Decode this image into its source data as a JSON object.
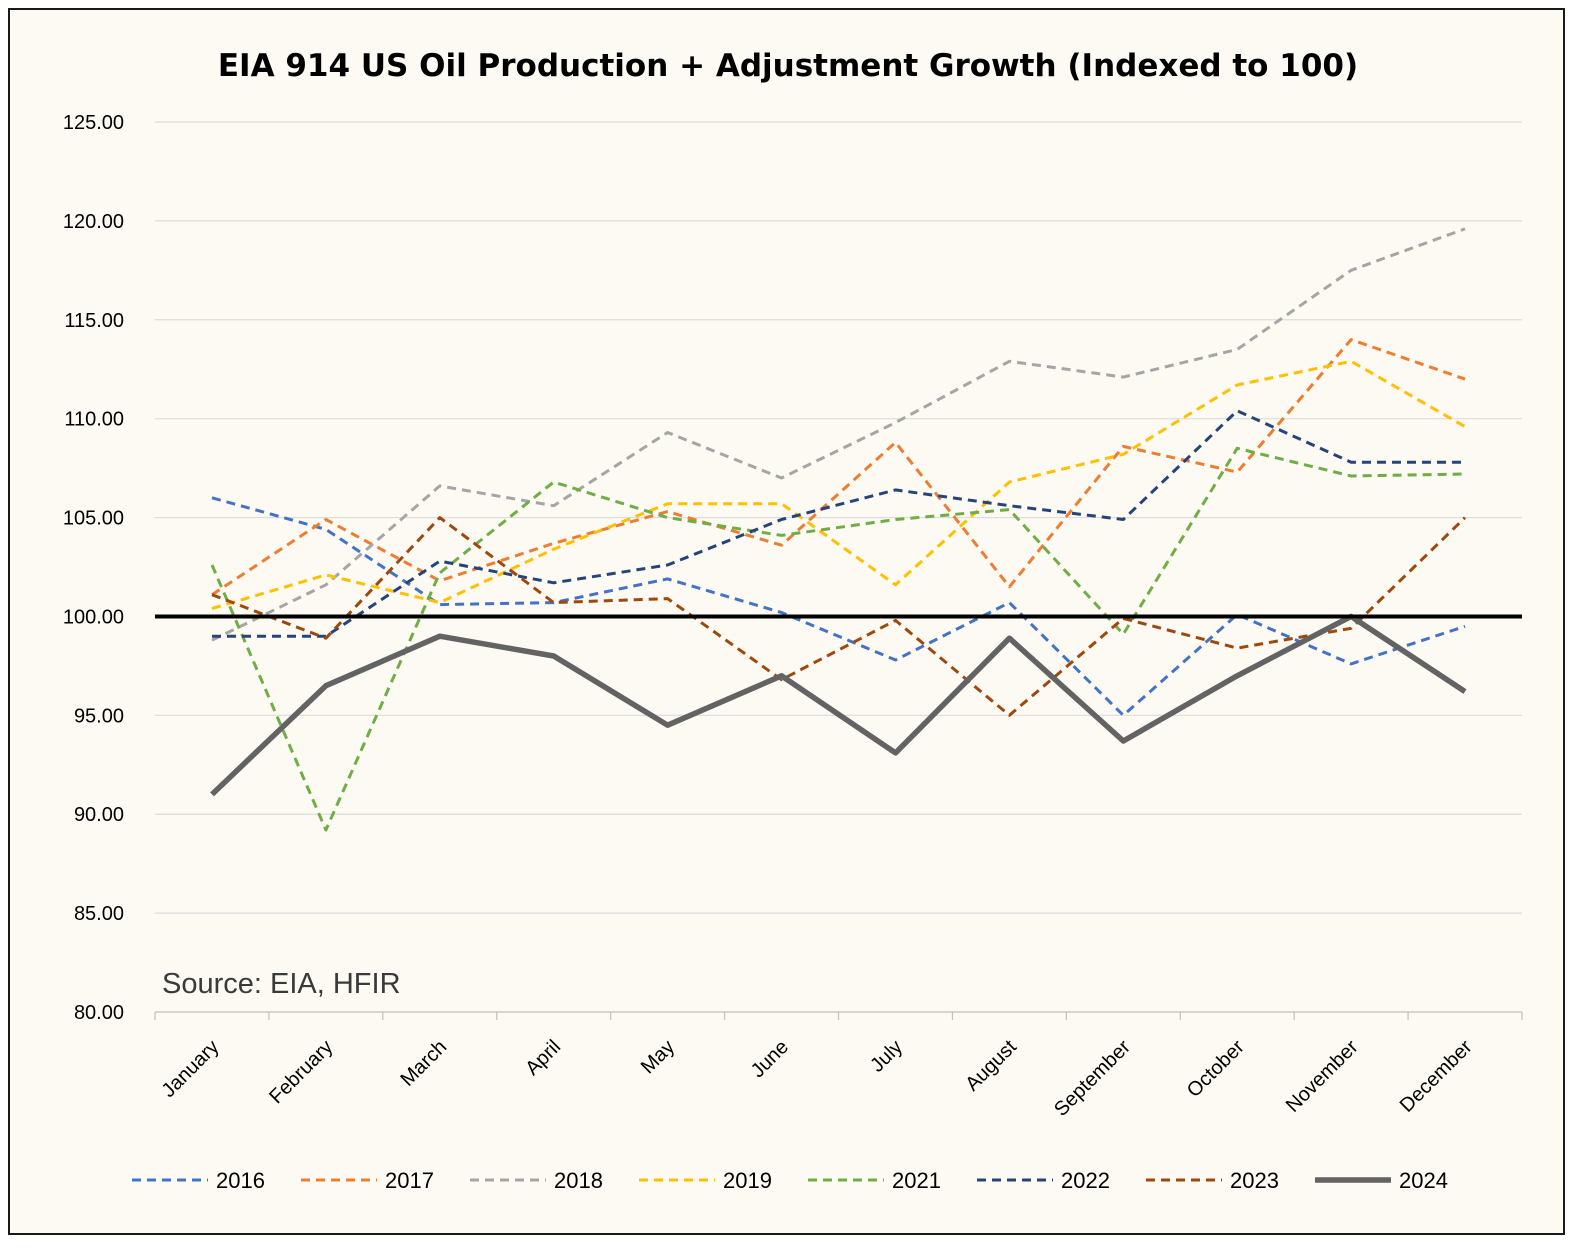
{
  "chart_data": {
    "type": "line",
    "title": "EIA 914 US Oil Production + Adjustment Growth (Indexed to 100)",
    "xlabel": "",
    "ylabel": "",
    "source_note": "Source: EIA, HFIR",
    "ylim": [
      80,
      125
    ],
    "y_ticks": [
      "80.00",
      "85.00",
      "90.00",
      "95.00",
      "100.00",
      "105.00",
      "110.00",
      "115.00",
      "120.00",
      "125.00"
    ],
    "y_tick_values": [
      80,
      85,
      90,
      95,
      100,
      105,
      110,
      115,
      120,
      125
    ],
    "categories": [
      "January",
      "February",
      "March",
      "April",
      "May",
      "June",
      "July",
      "August",
      "September",
      "October",
      "November",
      "December"
    ],
    "grid": true,
    "legend_position": "bottom",
    "reference_line": {
      "value": 100,
      "color": "#000000"
    },
    "series": [
      {
        "name": "2016",
        "color": "#4472c4",
        "dashed": true,
        "values": [
          106.0,
          104.4,
          100.6,
          100.7,
          101.9,
          100.2,
          97.8,
          100.7,
          95.0,
          100.1,
          97.6,
          99.5
        ]
      },
      {
        "name": "2017",
        "color": "#ed7d31",
        "dashed": true,
        "values": [
          101.1,
          104.9,
          101.8,
          103.7,
          105.3,
          103.6,
          108.8,
          101.5,
          108.6,
          107.3,
          114.0,
          112.0
        ]
      },
      {
        "name": "2018",
        "color": "#a5a5a5",
        "dashed": true,
        "values": [
          98.8,
          101.6,
          106.6,
          105.6,
          109.3,
          107.0,
          109.8,
          112.9,
          112.1,
          113.5,
          117.5,
          119.6
        ]
      },
      {
        "name": "2019",
        "color": "#ffc000",
        "dashed": true,
        "values": [
          100.4,
          102.1,
          100.7,
          103.4,
          105.7,
          105.7,
          101.6,
          106.8,
          108.2,
          111.7,
          112.9,
          109.6
        ]
      },
      {
        "name": "2021",
        "color": "#70ad47",
        "dashed": true,
        "values": [
          102.6,
          89.2,
          102.2,
          106.8,
          105.0,
          104.1,
          104.9,
          105.4,
          99.1,
          108.5,
          107.1,
          107.2
        ]
      },
      {
        "name": "2022",
        "color": "#264478",
        "dashed": true,
        "values": [
          99.0,
          99.0,
          102.8,
          101.7,
          102.6,
          104.9,
          106.4,
          105.6,
          104.9,
          110.4,
          107.8,
          107.8
        ]
      },
      {
        "name": "2023",
        "color": "#9e480e",
        "dashed": true,
        "values": [
          101.1,
          98.9,
          105.0,
          100.7,
          100.9,
          96.8,
          99.8,
          95.0,
          99.9,
          98.4,
          99.4,
          105.0
        ]
      },
      {
        "name": "2024",
        "color": "#636363",
        "dashed": false,
        "values": [
          91.0,
          96.5,
          99.0,
          98.0,
          94.5,
          97.0,
          93.1,
          98.9,
          93.7,
          97.0,
          100.0,
          96.2
        ]
      }
    ]
  }
}
